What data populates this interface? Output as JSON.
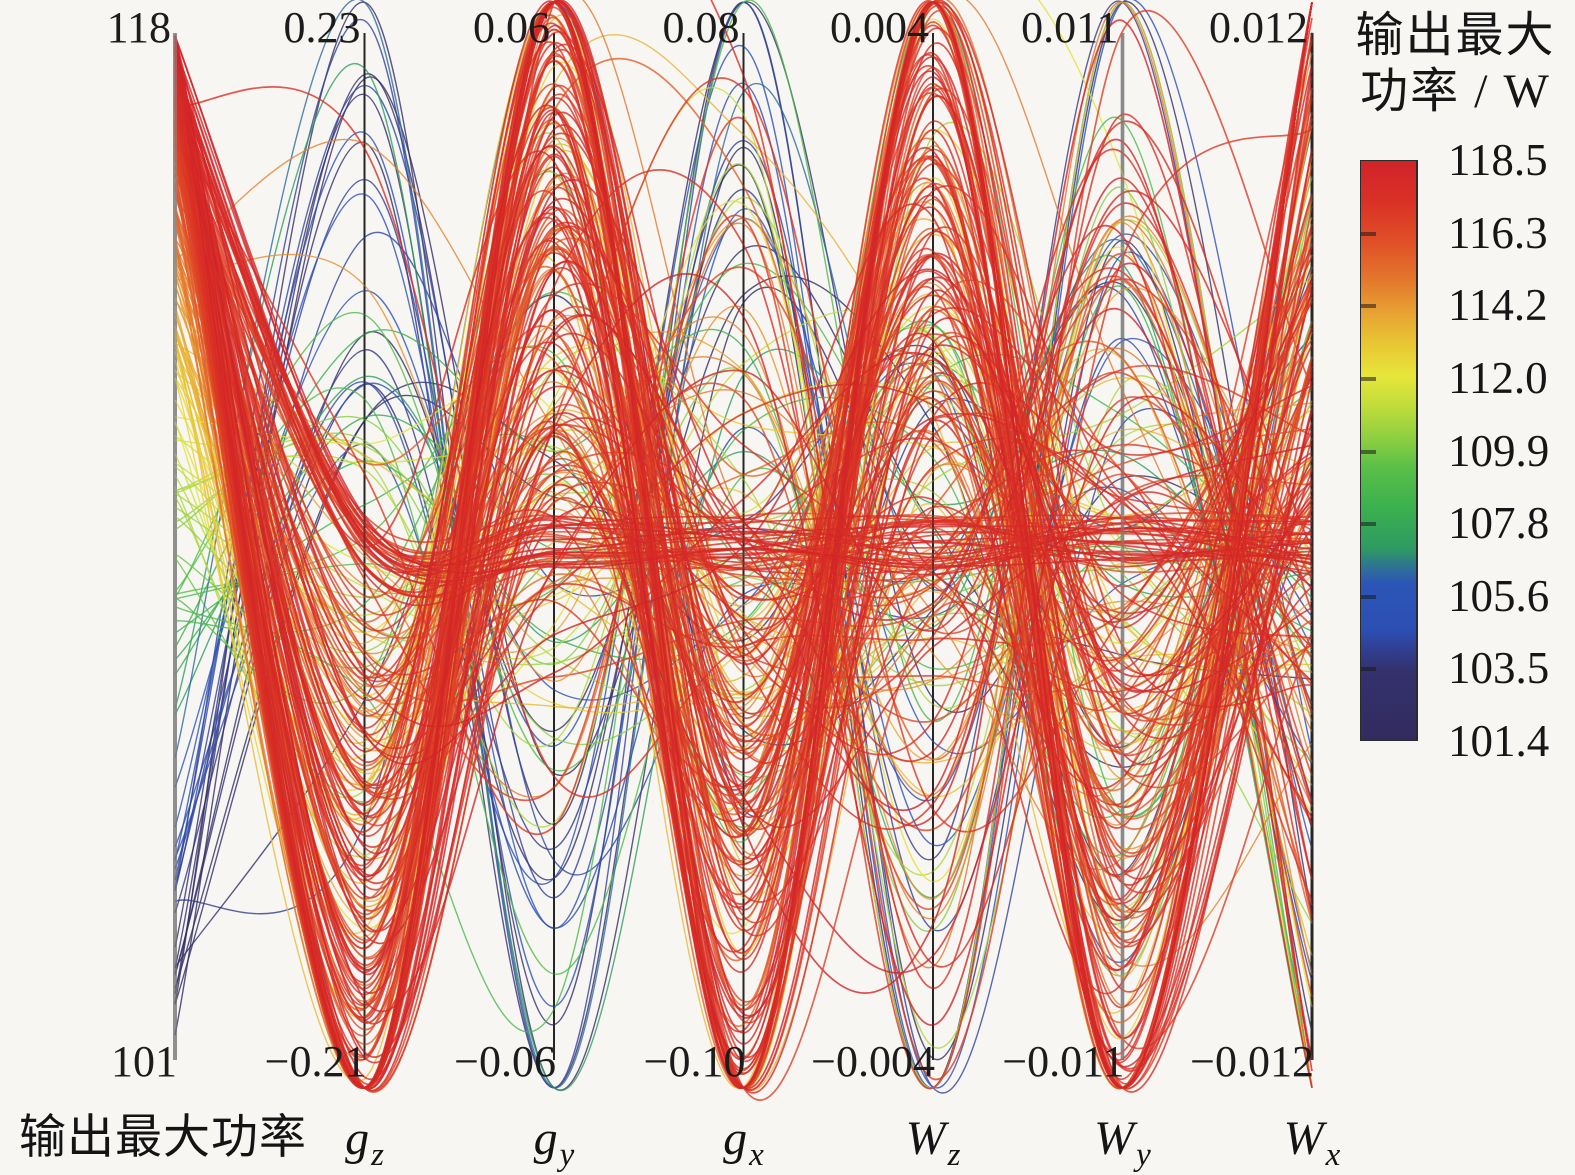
{
  "chart_data": {
    "type": "parallel-coordinates",
    "title": "",
    "axes": [
      {
        "name": "输出最大功率",
        "sub": "",
        "top_label": "118",
        "bottom_label": "101",
        "range": [
          101,
          118
        ]
      },
      {
        "name": "g",
        "sub": "z",
        "top_label": "0.23",
        "bottom_label": "−0.21",
        "range": [
          -0.21,
          0.23
        ]
      },
      {
        "name": "g",
        "sub": "y",
        "top_label": "0.06",
        "bottom_label": "−0.06",
        "range": [
          -0.06,
          0.06
        ]
      },
      {
        "name": "g",
        "sub": "x",
        "top_label": "0.08",
        "bottom_label": "−0.10",
        "range": [
          -0.1,
          0.08
        ]
      },
      {
        "name": "W",
        "sub": "z",
        "top_label": "0.004",
        "bottom_label": "−0.004",
        "range": [
          -0.004,
          0.004
        ]
      },
      {
        "name": "W",
        "sub": "y",
        "top_label": "0.011",
        "bottom_label": "−0.011",
        "range": [
          -0.011,
          0.011
        ]
      },
      {
        "name": "W",
        "sub": "x",
        "top_label": "0.012",
        "bottom_label": "−0.012",
        "range": [
          -0.012,
          0.012
        ]
      }
    ],
    "axis_line_colors": [
      "#8f8f8f",
      "#262626",
      "#262626",
      "#262626",
      "#262626",
      "#8a8a8a",
      "#262626"
    ],
    "axis_line_widths": [
      4,
      2,
      2,
      2,
      2,
      3.5,
      3
    ],
    "colorbar": {
      "title_line1": "输出最大",
      "title_line2": "功率 / W",
      "tick_labels": [
        "118.5",
        "116.3",
        "114.2",
        "112.0",
        "109.9",
        "107.8",
        "105.6",
        "103.5",
        "101.4"
      ],
      "value_range": [
        101.4,
        118.5
      ]
    },
    "colormap_stops": [
      [
        0.0,
        "#322b5f"
      ],
      [
        0.12,
        "#34316d"
      ],
      [
        0.155,
        "#303e90"
      ],
      [
        0.19,
        "#2c4fb3"
      ],
      [
        0.27,
        "#2c55b8"
      ],
      [
        0.3,
        "#2e7492"
      ],
      [
        0.33,
        "#2e9a62"
      ],
      [
        0.4,
        "#3bb04f"
      ],
      [
        0.47,
        "#59bf48"
      ],
      [
        0.52,
        "#8ccf41"
      ],
      [
        0.58,
        "#c3dd3a"
      ],
      [
        0.63,
        "#e7e63a"
      ],
      [
        0.68,
        "#e8c934"
      ],
      [
        0.74,
        "#e7a032"
      ],
      [
        0.8,
        "#e3742c"
      ],
      [
        0.86,
        "#e04f27"
      ],
      [
        0.93,
        "#da3126"
      ],
      [
        1.0,
        "#d02329"
      ]
    ],
    "lines": {
      "count": 270,
      "seed": 20240613,
      "color_encodes": "first-axis value (输出最大功率) mapped through colormap",
      "first_axis_distribution": "heavily concentrated near maximum (red), sparse tail to minimum (navy)"
    },
    "background_color": "#f7f6f3"
  }
}
